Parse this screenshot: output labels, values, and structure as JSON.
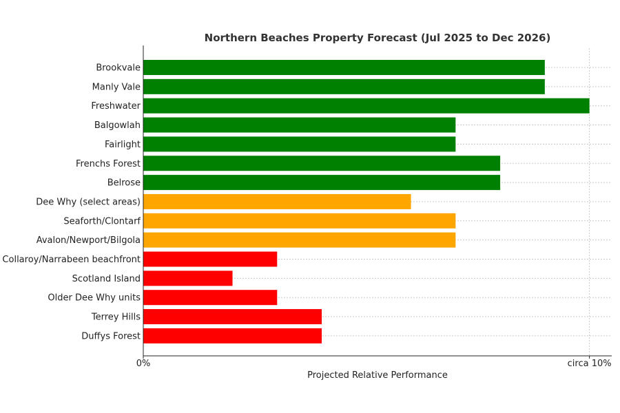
{
  "chart_data": {
    "type": "bar",
    "orientation": "horizontal",
    "title": "Northern Beaches Property Forecast (Jul 2025 to Dec 2026)",
    "xlabel": "Projected Relative Performance",
    "ylabel": "",
    "xlim": [
      0,
      10.5
    ],
    "x_ticks": [
      {
        "value": 0,
        "label": "0%"
      },
      {
        "value": 10,
        "label": "circa 10%"
      }
    ],
    "grid": true,
    "categories": [
      "Brookvale",
      "Manly Vale",
      "Freshwater",
      "Balgowlah",
      "Fairlight",
      "Frenchs Forest",
      "Belrose",
      "Dee Why (select areas)",
      "Seaforth/Clontarf",
      "Avalon/Newport/Bilgola",
      "Collaroy/Narrabeen beachfront",
      "Scotland Island",
      "Older Dee Why units",
      "Terrey Hills",
      "Duffys Forest"
    ],
    "values": [
      9,
      9,
      10,
      7,
      7,
      8,
      8,
      6,
      7,
      7,
      3,
      2,
      3,
      4,
      4
    ],
    "bar_colors": [
      "#008000",
      "#008000",
      "#008000",
      "#008000",
      "#008000",
      "#008000",
      "#008000",
      "#FFA500",
      "#FFA500",
      "#FFA500",
      "#FF0000",
      "#FF0000",
      "#FF0000",
      "#FF0000",
      "#FF0000"
    ]
  }
}
